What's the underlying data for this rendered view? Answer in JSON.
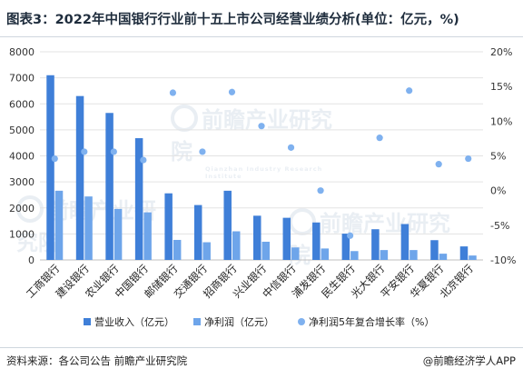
{
  "title": "图表3：2022年中国银行行业前十五上市公司经营业绩分析(单位：亿元，%)",
  "source": "资料来源：各公司公告 前瞻产业研究院",
  "brand": "@前瞻经济学人APP",
  "watermark": {
    "text": "前瞻产业研究院",
    "sub": "Qianzhan Industry Research Institute"
  },
  "colors": {
    "revenue": "#3f7fd8",
    "profit": "#6ea5ea",
    "cagr": "#7fb1ef",
    "grid": "#e3e3e3",
    "axis_text": "#333333"
  },
  "chart_data": {
    "type": "bar",
    "categories": [
      "工商银行",
      "建设银行",
      "农业银行",
      "中国银行",
      "邮储银行",
      "交通银行",
      "招商银行",
      "兴业银行",
      "中信银行",
      "浦发银行",
      "民生银行",
      "光大银行",
      "平安银行",
      "华夏银行",
      "北京银行"
    ],
    "series": [
      {
        "name": "营业收入（亿元）",
        "axis": "left",
        "kind": "bar",
        "values": [
          7100,
          6300,
          5650,
          4680,
          2560,
          2110,
          2660,
          1700,
          1620,
          1440,
          1010,
          1180,
          1380,
          760,
          520
        ]
      },
      {
        "name": "净利润（亿元）",
        "axis": "left",
        "kind": "bar",
        "values": [
          2660,
          2440,
          1960,
          1830,
          770,
          680,
          1100,
          700,
          480,
          440,
          340,
          380,
          380,
          240,
          170
        ]
      },
      {
        "name": "净利润5年复合增长率（%）",
        "axis": "right",
        "kind": "scatter",
        "values": [
          4.6,
          5.6,
          5.6,
          4.4,
          14.1,
          5.6,
          14.2,
          9.3,
          6.2,
          0.0,
          -6.5,
          7.6,
          14.4,
          3.8,
          4.6
        ]
      }
    ],
    "y_left": {
      "min": 0,
      "max": 8000,
      "ticks": [
        "0",
        "1000",
        "2000",
        "3000",
        "4000",
        "5000",
        "6000",
        "7000",
        "8000"
      ]
    },
    "y_right": {
      "min": -10,
      "max": 20,
      "ticks": [
        "-10%",
        "-5%",
        "0%",
        "5%",
        "10%",
        "15%",
        "20%"
      ]
    },
    "grid": true,
    "legend": "bottom"
  }
}
